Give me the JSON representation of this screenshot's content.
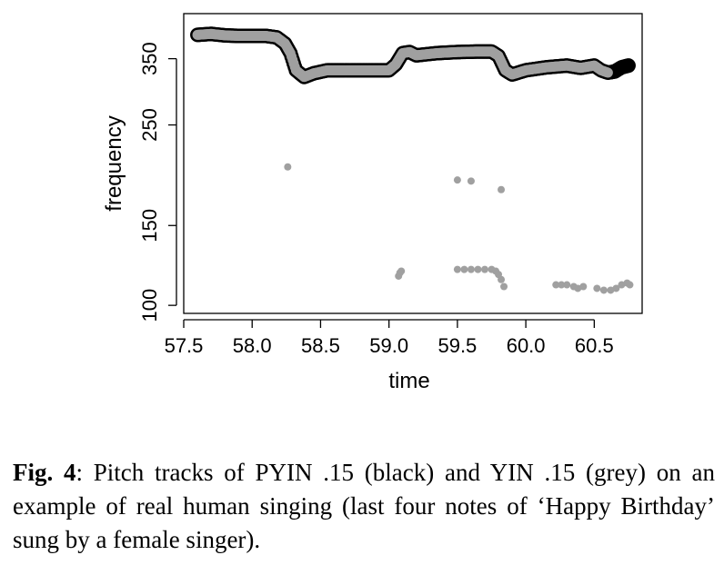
{
  "chart_data": {
    "type": "scatter",
    "xlabel": "time",
    "ylabel": "frequency",
    "y_scale": "log",
    "xlim": [
      57.5,
      60.85
    ],
    "ylim": [
      96,
      440
    ],
    "x_ticks": [
      57.5,
      58.0,
      58.5,
      59.0,
      59.5,
      60.0,
      60.5
    ],
    "x_tick_labels": [
      "57.5",
      "58.0",
      "58.5",
      "59.0",
      "59.5",
      "60.0",
      "60.5"
    ],
    "y_ticks": [
      100,
      150,
      250,
      350
    ],
    "y_tick_labels": [
      "100",
      "150",
      "250",
      "350"
    ],
    "grid": false,
    "series": [
      {
        "name": "PYIN .15",
        "color": "#000000",
        "points": [
          [
            57.6,
            395
          ],
          [
            57.7,
            397
          ],
          [
            57.8,
            394
          ],
          [
            57.9,
            393
          ],
          [
            58.0,
            393
          ],
          [
            58.1,
            393
          ],
          [
            58.18,
            390
          ],
          [
            58.24,
            378
          ],
          [
            58.28,
            360
          ],
          [
            58.32,
            330
          ],
          [
            58.38,
            319
          ],
          [
            58.45,
            325
          ],
          [
            58.55,
            330
          ],
          [
            58.7,
            330
          ],
          [
            58.85,
            330
          ],
          [
            59.0,
            330
          ],
          [
            59.05,
            340
          ],
          [
            59.1,
            360
          ],
          [
            59.15,
            362
          ],
          [
            59.2,
            356
          ],
          [
            59.35,
            360
          ],
          [
            59.5,
            362
          ],
          [
            59.65,
            363
          ],
          [
            59.75,
            363
          ],
          [
            59.8,
            355
          ],
          [
            59.85,
            330
          ],
          [
            59.9,
            323
          ],
          [
            60.0,
            330
          ],
          [
            60.15,
            335
          ],
          [
            60.3,
            338
          ],
          [
            60.4,
            334
          ],
          [
            60.5,
            338
          ],
          [
            60.55,
            330
          ],
          [
            60.6,
            326
          ],
          [
            60.65,
            328
          ],
          [
            60.7,
            335
          ],
          [
            60.75,
            338
          ]
        ]
      },
      {
        "name": "YIN .15",
        "color": "#a0a0a0",
        "points": [
          [
            57.6,
            395
          ],
          [
            57.7,
            397
          ],
          [
            57.8,
            394
          ],
          [
            57.9,
            393
          ],
          [
            58.0,
            393
          ],
          [
            58.1,
            393
          ],
          [
            58.18,
            390
          ],
          [
            58.24,
            378
          ],
          [
            58.28,
            360
          ],
          [
            58.32,
            330
          ],
          [
            58.38,
            319
          ],
          [
            58.45,
            325
          ],
          [
            58.55,
            330
          ],
          [
            58.7,
            330
          ],
          [
            58.85,
            330
          ],
          [
            59.0,
            330
          ],
          [
            59.05,
            340
          ],
          [
            59.1,
            360
          ],
          [
            59.15,
            362
          ],
          [
            59.2,
            356
          ],
          [
            59.35,
            360
          ],
          [
            59.5,
            362
          ],
          [
            59.65,
            363
          ],
          [
            59.75,
            363
          ],
          [
            59.8,
            355
          ],
          [
            59.85,
            330
          ],
          [
            59.9,
            323
          ],
          [
            60.0,
            330
          ],
          [
            60.15,
            335
          ],
          [
            60.3,
            338
          ],
          [
            60.4,
            334
          ],
          [
            60.5,
            338
          ],
          [
            60.55,
            330
          ],
          [
            60.6,
            326
          ],
          [
            58.26,
            202
          ],
          [
            59.5,
            189
          ],
          [
            59.6,
            188
          ],
          [
            59.82,
            180
          ],
          [
            59.07,
            116
          ],
          [
            59.08,
            118
          ],
          [
            59.09,
            119
          ],
          [
            59.5,
            120
          ],
          [
            59.55,
            120
          ],
          [
            59.6,
            120
          ],
          [
            59.65,
            120
          ],
          [
            59.7,
            120
          ],
          [
            59.75,
            120
          ],
          [
            59.78,
            119
          ],
          [
            59.8,
            117
          ],
          [
            59.82,
            114
          ],
          [
            59.84,
            110
          ],
          [
            60.22,
            111
          ],
          [
            60.26,
            111
          ],
          [
            60.3,
            111
          ],
          [
            60.35,
            110
          ],
          [
            60.38,
            109
          ],
          [
            60.42,
            110
          ],
          [
            60.52,
            109
          ],
          [
            60.57,
            108
          ],
          [
            60.62,
            108
          ],
          [
            60.66,
            109
          ],
          [
            60.7,
            111
          ],
          [
            60.74,
            112
          ],
          [
            60.76,
            111
          ]
        ]
      }
    ]
  },
  "caption": {
    "label": "Fig. 4",
    "text": ": Pitch tracks of PYIN .15 (black) and YIN .15 (grey) on an example of real human singing (last four notes of ‘Happy Birthday’ sung by a female singer)."
  }
}
